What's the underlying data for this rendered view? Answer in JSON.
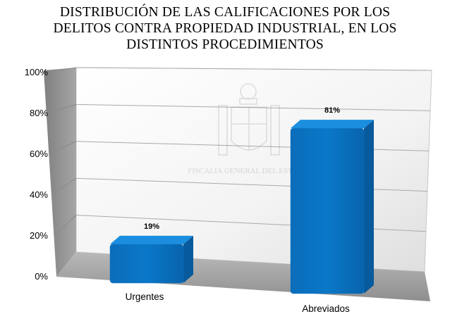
{
  "chart_data": {
    "type": "bar",
    "title_lines": [
      "DISTRIBUCIÓN DE LAS CALIFICACIONES POR LOS",
      "DELITOS CONTRA PROPIEDAD INDUSTRIAL, EN LOS",
      "DISTINTOS PROCEDIMIENTOS"
    ],
    "categories": [
      "Urgentes",
      "Abreviados"
    ],
    "values": [
      19,
      81
    ],
    "data_labels": [
      "19%",
      "81%"
    ],
    "ylim": [
      0,
      100
    ],
    "yticks": [
      "0%",
      "20%",
      "40%",
      "60%",
      "80%",
      "100%"
    ],
    "grid": true,
    "style": "3d-column",
    "bar_color": "#0A74C4",
    "watermark": "FISCALÍA GENERAL DEL ESTADO"
  }
}
